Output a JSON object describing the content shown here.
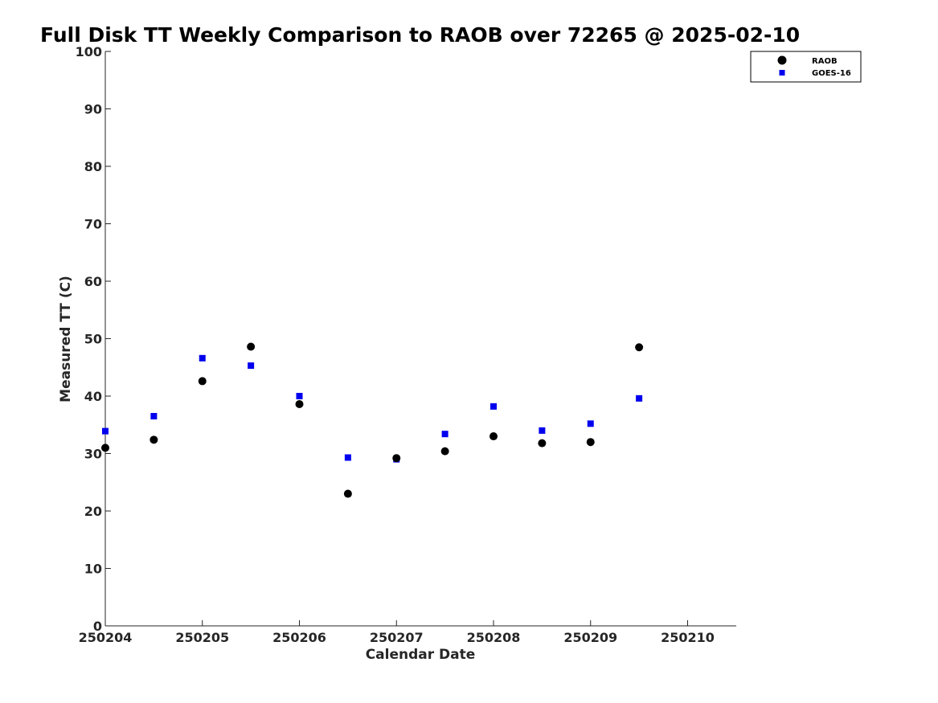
{
  "chart_data": {
    "type": "scatter",
    "title": "Full Disk TT Weekly Comparison to RAOB over 72265 @ 2025-02-10",
    "xlabel": "Calendar Date",
    "ylabel": "Measured TT (C)",
    "xlim": [
      0,
      6.5
    ],
    "ylim": [
      0,
      100
    ],
    "x_ticks": [
      {
        "pos": 0,
        "label": "250204"
      },
      {
        "pos": 1,
        "label": "250205"
      },
      {
        "pos": 2,
        "label": "250206"
      },
      {
        "pos": 3,
        "label": "250207"
      },
      {
        "pos": 4,
        "label": "250208"
      },
      {
        "pos": 5,
        "label": "250209"
      },
      {
        "pos": 6,
        "label": "250210"
      }
    ],
    "y_ticks": [
      0,
      10,
      20,
      30,
      40,
      50,
      60,
      70,
      80,
      90,
      100
    ],
    "grid": false,
    "legend_position": "top-right",
    "series": [
      {
        "name": "RAOB",
        "marker": "circle",
        "color": "#000000",
        "x": [
          0,
          0.5,
          1,
          1.5,
          2,
          2.5,
          3,
          3.5,
          4,
          4.5,
          5,
          5.5
        ],
        "y": [
          31.0,
          32.4,
          42.6,
          48.6,
          38.6,
          23.0,
          29.2,
          30.4,
          33.0,
          31.8,
          32.0,
          48.5
        ]
      },
      {
        "name": "GOES-16",
        "marker": "square",
        "color": "#0000ee",
        "x": [
          0,
          0.5,
          1,
          1.5,
          2,
          2.5,
          3,
          3.5,
          4,
          4.5,
          5,
          5.5
        ],
        "y": [
          33.9,
          36.5,
          46.6,
          45.3,
          40.0,
          29.3,
          29.0,
          33.4,
          38.2,
          34.0,
          35.2,
          39.6
        ]
      }
    ]
  }
}
